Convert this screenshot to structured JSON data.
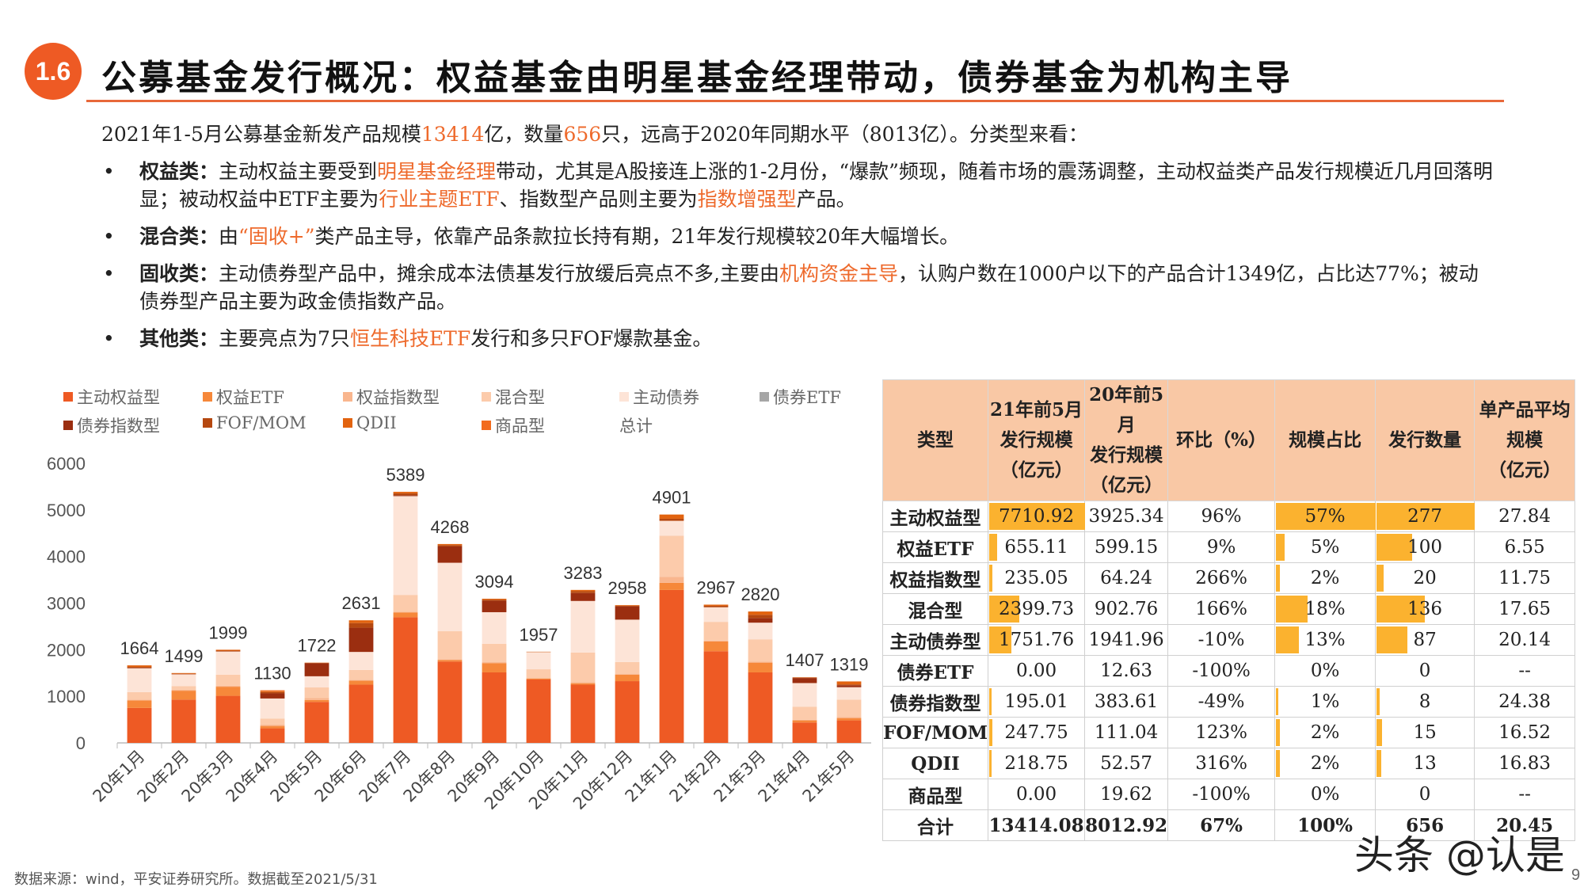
{
  "header": {
    "badge": "1.6",
    "title": "公募基金发行概况：权益基金由明星基金经理带动，债券基金为机构主导"
  },
  "intro": [
    {
      "t": "2021年1-5月公募基金新发产品规模"
    },
    {
      "t": "13414",
      "hl": true
    },
    {
      "t": "亿，数量"
    },
    {
      "t": "656",
      "hl": true
    },
    {
      "t": "只，远高于2020年同期水平（8013亿）。分类型来看："
    }
  ],
  "bullets": [
    {
      "lead": "权益类：",
      "segments": [
        {
          "t": "主动权益主要受到"
        },
        {
          "t": "明星基金经理",
          "hl": true
        },
        {
          "t": "带动，尤其是A股接连上涨的1-2月份，“爆款”频现，随着市场的震荡调整，主动权益类产品发行规模近几月回落明显；被动权益中ETF主要为"
        },
        {
          "t": "行业主题ETF",
          "hl": true
        },
        {
          "t": "、指数型产品则主要为"
        },
        {
          "t": "指数增强型",
          "hl": true
        },
        {
          "t": "产品。"
        }
      ]
    },
    {
      "lead": "混合类：",
      "segments": [
        {
          "t": "由"
        },
        {
          "t": "“固收+”",
          "hl": true
        },
        {
          "t": "类产品主导，依靠产品条款拉长持有期，21年发行规模较20年大幅增长。"
        }
      ]
    },
    {
      "lead": "固收类：",
      "segments": [
        {
          "t": "主动债券型产品中，摊余成本法债基发行放缓后亮点不多,主要由"
        },
        {
          "t": "机构资金主导",
          "hl": true
        },
        {
          "t": "，认购户数在1000户以下的产品合计1349亿，占比达77%；被动债券型产品主要为政金债指数产品。"
        }
      ]
    },
    {
      "lead": "其他类：",
      "segments": [
        {
          "t": "主要亮点为7只"
        },
        {
          "t": "恒生科技ETF",
          "hl": true
        },
        {
          "t": "发行和多只FOF爆款基金。"
        }
      ]
    }
  ],
  "chart_data": {
    "type": "bar",
    "stacked": true,
    "categories": [
      "20年1月",
      "20年2月",
      "20年3月",
      "20年4月",
      "20年5月",
      "20年6月",
      "20年7月",
      "20年8月",
      "20年9月",
      "20年10月",
      "20年11月",
      "20年12月",
      "21年1月",
      "21年2月",
      "21年3月",
      "21年4月",
      "21年5月"
    ],
    "totals": [
      1664,
      1499,
      1999,
      1130,
      1722,
      2631,
      5389,
      4268,
      3094,
      1957,
      3283,
      2958,
      4901,
      2967,
      2820,
      1407,
      1319
    ],
    "total_label": "总计",
    "ylim": [
      0,
      6000
    ],
    "yticks": [
      "0",
      "1000",
      "2000",
      "3000",
      "4000",
      "5000",
      "6000"
    ],
    "legend_position": "top",
    "grid": false,
    "series": [
      {
        "name": "主动权益型",
        "color": "#ee5a24",
        "values": [
          750,
          930,
          1010,
          313,
          880,
          1250,
          2696,
          1746,
          1513,
          1360,
          1250,
          1325,
          3282,
          1968,
          1513,
          438,
          483
        ]
      },
      {
        "name": "权益ETF",
        "color": "#f6883a",
        "values": [
          160,
          190,
          195,
          50,
          40,
          85,
          100,
          30,
          200,
          20,
          30,
          140,
          154,
          210,
          210,
          45,
          50
        ]
      },
      {
        "name": "权益指数型",
        "color": "#f9b68e",
        "values": [
          20,
          20,
          20,
          30,
          40,
          20,
          20,
          20,
          20,
          20,
          20,
          20,
          130,
          20,
          20,
          15,
          20
        ]
      },
      {
        "name": "混合型",
        "color": "#fccbab",
        "values": [
          160,
          80,
          240,
          130,
          230,
          210,
          360,
          600,
          395,
          180,
          640,
          250,
          880,
          400,
          480,
          280,
          375
        ]
      },
      {
        "name": "主动债券",
        "color": "#fde4d7",
        "values": [
          510,
          250,
          495,
          430,
          240,
          387,
          2120,
          1470,
          677,
          367,
          1106,
          910,
          320,
          313,
          357,
          506,
          267
        ]
      },
      {
        "name": "债券ETF",
        "color": "#a6a6a6",
        "values": [
          0,
          0,
          0,
          0,
          0,
          0,
          0,
          0,
          0,
          0,
          0,
          0,
          0,
          0,
          0,
          0,
          0
        ]
      },
      {
        "name": "债券指数型",
        "color": "#9b2e10",
        "values": [
          10,
          5,
          5,
          110,
          280,
          520,
          20,
          350,
          245,
          0,
          170,
          285,
          0,
          0,
          100,
          108,
          40
        ]
      },
      {
        "name": "FOF/MOM",
        "color": "#b54810",
        "values": [
          20,
          10,
          15,
          30,
          6,
          100,
          40,
          30,
          24,
          5,
          40,
          14,
          45,
          30,
          70,
          10,
          20
        ]
      },
      {
        "name": "QDII",
        "color": "#e2630f",
        "values": [
          34,
          14,
          19,
          17,
          6,
          59,
          33,
          22,
          20,
          5,
          27,
          14,
          90,
          26,
          70,
          5,
          64
        ]
      },
      {
        "name": "商品型",
        "color": "#f26b1d",
        "values": [
          0,
          0,
          0,
          20,
          0,
          0,
          0,
          0,
          0,
          0,
          0,
          0,
          0,
          0,
          0,
          0,
          0
        ]
      }
    ]
  },
  "table": {
    "headers": [
      "类型",
      "21年前5月\n发行规模\n（亿元）",
      "20年前5月\n发行规模\n（亿元）",
      "环比（%）",
      "规模占比",
      "发行数量",
      "单产品平均\n规模\n（亿元）"
    ],
    "bar_color": "#fbb22f",
    "header_color": "#f9c8a5",
    "rows": [
      {
        "type": "主动权益型",
        "s21": "7710.92",
        "s20": "3925.34",
        "yoy": "96%",
        "share": "57%",
        "count": "277",
        "avg": "27.84",
        "share_v": 57,
        "s21_v": 7710.92,
        "count_v": 277
      },
      {
        "type": "权益ETF",
        "s21": "655.11",
        "s20": "599.15",
        "yoy": "9%",
        "share": "5%",
        "count": "100",
        "avg": "6.55",
        "share_v": 5,
        "s21_v": 655.11,
        "count_v": 100
      },
      {
        "type": "权益指数型",
        "s21": "235.05",
        "s20": "64.24",
        "yoy": "266%",
        "share": "2%",
        "count": "20",
        "avg": "11.75",
        "share_v": 2,
        "s21_v": 235.05,
        "count_v": 20
      },
      {
        "type": "混合型",
        "s21": "2399.73",
        "s20": "902.76",
        "yoy": "166%",
        "share": "18%",
        "count": "136",
        "avg": "17.65",
        "share_v": 18,
        "s21_v": 2399.73,
        "count_v": 136
      },
      {
        "type": "主动债券型",
        "s21": "1751.76",
        "s20": "1941.96",
        "yoy": "-10%",
        "share": "13%",
        "count": "87",
        "avg": "20.14",
        "share_v": 13,
        "s21_v": 1751.76,
        "count_v": 87
      },
      {
        "type": "债券ETF",
        "s21": "0.00",
        "s20": "12.63",
        "yoy": "-100%",
        "share": "0%",
        "count": "0",
        "avg": "--",
        "share_v": 0,
        "s21_v": 0,
        "count_v": 0
      },
      {
        "type": "债券指数型",
        "s21": "195.01",
        "s20": "383.61",
        "yoy": "-49%",
        "share": "1%",
        "count": "8",
        "avg": "24.38",
        "share_v": 1,
        "s21_v": 195.01,
        "count_v": 8
      },
      {
        "type": "FOF/MOM",
        "s21": "247.75",
        "s20": "111.04",
        "yoy": "123%",
        "share": "2%",
        "count": "15",
        "avg": "16.52",
        "share_v": 2,
        "s21_v": 247.75,
        "count_v": 15
      },
      {
        "type": "QDII",
        "s21": "218.75",
        "s20": "52.57",
        "yoy": "316%",
        "share": "2%",
        "count": "13",
        "avg": "16.83",
        "share_v": 2,
        "s21_v": 218.75,
        "count_v": 13
      },
      {
        "type": "商品型",
        "s21": "0.00",
        "s20": "19.62",
        "yoy": "-100%",
        "share": "0%",
        "count": "0",
        "avg": "--",
        "share_v": 0,
        "s21_v": 0,
        "count_v": 0
      }
    ],
    "total": {
      "type": "合计",
      "s21": "13414.08",
      "s20": "8012.92",
      "yoy": "67%",
      "share": "100%",
      "count": "656",
      "avg": "20.45"
    }
  },
  "footer": {
    "source": "数据来源：wind，平安证券研究所。数据截至2021/5/31",
    "page": "9",
    "watermark": "头条 @认是"
  }
}
